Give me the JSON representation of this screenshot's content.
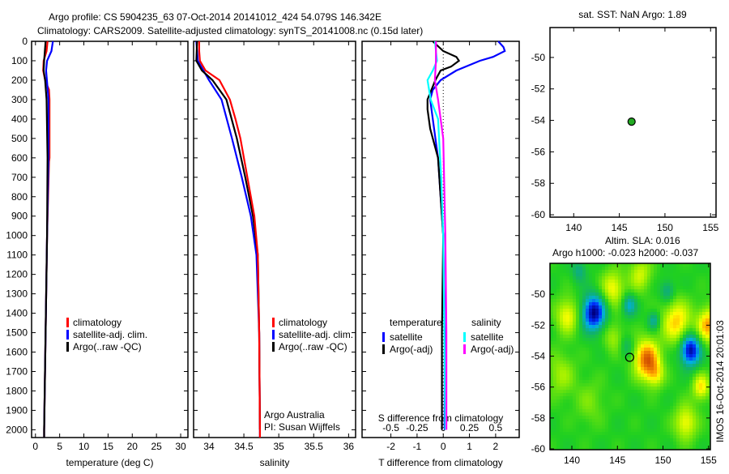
{
  "title_line1": "Argo profile: CS 5904235_63 07-Oct-2014 20141012_424 54.079S 146.342E",
  "title_line2": "Climatology: CARS2009. Satellite-adjusted climatology: synTS_20141008.nc (0.15d later)",
  "colors": {
    "climatology": "#ff0000",
    "satellite": "#0000ff",
    "argo": "#000000",
    "sal_satellite": "#00ffff",
    "sal_argo": "#ff00ff",
    "marker": "#22aa22"
  },
  "chart_data": [
    {
      "type": "line",
      "name": "temperature-profile",
      "xlabel": "temperature (deg C)",
      "ylabel": "depth",
      "xlim": [
        -0.8,
        31.5
      ],
      "ylim": [
        2040,
        0
      ],
      "xticks": [
        0,
        5,
        10,
        15,
        20,
        25,
        30
      ],
      "yticks": [
        0,
        100,
        200,
        300,
        400,
        500,
        600,
        700,
        800,
        900,
        1000,
        1100,
        1200,
        1300,
        1400,
        1500,
        1600,
        1700,
        1800,
        1900,
        2000
      ],
      "legend": [
        "climatology",
        "satellite-adj. clim.",
        "Argo(..raw -QC)"
      ],
      "series": [
        {
          "name": "climatology",
          "color": "#ff0000",
          "depth": [
            0,
            50,
            100,
            150,
            200,
            250,
            300,
            400,
            500,
            600,
            620,
            1000,
            1500,
            2000,
            2040
          ],
          "values": [
            2.5,
            2.3,
            1.7,
            1.6,
            2.0,
            2.8,
            2.9,
            2.9,
            2.9,
            2.9,
            2.8,
            2.4,
            2.1,
            1.8,
            1.8
          ]
        },
        {
          "name": "satellite-adj. clim.",
          "color": "#0000ff",
          "depth": [
            0,
            50,
            100,
            150,
            300,
            600,
            1000,
            1500,
            2000,
            2040
          ],
          "values": [
            3.6,
            3.3,
            2.4,
            2.2,
            2.7,
            2.7,
            2.4,
            2.1,
            1.8,
            1.8
          ]
        },
        {
          "name": "Argo(..raw -QC)",
          "color": "#000000",
          "depth": [
            0,
            100,
            150,
            200,
            300,
            600,
            1000,
            1500,
            2000,
            2040
          ],
          "values": [
            2.1,
            1.8,
            1.7,
            2.0,
            2.3,
            2.5,
            2.4,
            2.1,
            1.8,
            1.8
          ]
        }
      ]
    },
    {
      "type": "line",
      "name": "salinity-profile",
      "xlabel": "salinity",
      "xlim": [
        33.78,
        36.1
      ],
      "ylim": [
        2040,
        0
      ],
      "xticks": [
        34,
        34.5,
        35,
        35.5,
        36
      ],
      "legend": [
        "climatology",
        "satellite-adj. clim.",
        "Argo(..raw -QC)"
      ],
      "annotation": [
        "Argo Australia",
        "PI: Susan Wijffels"
      ],
      "series": [
        {
          "name": "satellite-adj. clim.",
          "color": "#0000ff",
          "depth": [
            0,
            100,
            200,
            300,
            500,
            700,
            900,
            1100,
            1500,
            2000,
            2040
          ],
          "values": [
            33.82,
            33.84,
            34.0,
            34.18,
            34.33,
            34.47,
            34.6,
            34.68,
            34.72,
            34.73,
            34.73
          ]
        },
        {
          "name": "Argo(..raw -QC)",
          "color": "#000000",
          "depth": [
            0,
            100,
            150,
            200,
            300,
            500,
            700,
            900,
            1100,
            1500,
            2000
          ],
          "values": [
            33.83,
            33.82,
            33.9,
            34.05,
            34.25,
            34.4,
            34.52,
            34.63,
            34.7,
            34.72,
            34.73
          ]
        },
        {
          "name": "climatology",
          "color": "#ff0000",
          "depth": [
            0,
            50,
            100,
            150,
            200,
            300,
            400,
            500,
            700,
            900,
            1100,
            1500,
            2000,
            2040
          ],
          "values": [
            33.86,
            33.86,
            33.87,
            33.95,
            34.15,
            34.3,
            34.38,
            34.45,
            34.55,
            34.65,
            34.7,
            34.72,
            34.73,
            34.73
          ]
        }
      ]
    },
    {
      "type": "line",
      "name": "difference-profile",
      "xlabel": "T difference from climatology",
      "x2label": "S difference from climatology",
      "xlim": [
        -3.1,
        2.9
      ],
      "ylim": [
        2040,
        0
      ],
      "xticks": [
        -2,
        -1,
        0,
        1,
        2
      ],
      "x2ticks": [
        "-0.5",
        "-0.25",
        "0",
        "0.25",
        "0.5"
      ],
      "legend_headers": [
        "temperature",
        "salinity"
      ],
      "legend": [
        "satellite",
        "Argo(-adj)",
        "satellite",
        "Argo(-adj)"
      ],
      "series": [
        {
          "name": "T satellite",
          "color": "#0000ff",
          "depth": [
            0,
            30,
            50,
            80,
            100,
            150,
            200,
            250,
            300,
            400,
            600,
            1000,
            1500,
            2000
          ],
          "values": [
            2.1,
            2.3,
            2.35,
            1.9,
            1.4,
            0.5,
            -0.1,
            -0.4,
            -0.5,
            -0.4,
            -0.2,
            0.0,
            0.05,
            0.05
          ]
        },
        {
          "name": "T Argo(-adj)",
          "color": "#000000",
          "depth": [
            0,
            50,
            80,
            100,
            130,
            150,
            200,
            300,
            350,
            450,
            600,
            1000,
            1500,
            2000
          ],
          "values": [
            -0.4,
            0.0,
            0.5,
            0.6,
            0.3,
            -0.1,
            -0.3,
            -0.6,
            -0.6,
            -0.5,
            -0.2,
            0.0,
            -0.05,
            -0.05
          ]
        },
        {
          "name": "S satellite",
          "color": "#00ffff",
          "scale": 4,
          "depth": [
            0,
            100,
            150,
            200,
            300,
            400,
            700,
            1000,
            2000
          ],
          "values": [
            -0.08,
            -0.06,
            -0.1,
            -0.15,
            -0.12,
            -0.05,
            -0.02,
            0.0,
            0.02
          ]
        },
        {
          "name": "S Argo(-adj)",
          "color": "#ff00ff",
          "scale": 4,
          "depth": [
            0,
            100,
            200,
            300,
            500,
            1000,
            1500,
            2000
          ],
          "values": [
            -0.07,
            -0.07,
            -0.08,
            -0.05,
            0.0,
            0.02,
            0.03,
            0.03
          ]
        }
      ]
    },
    {
      "type": "scatter",
      "name": "sst-map",
      "title": "sat. SST: NaN Argo: 1.89",
      "xlim": [
        137.4,
        155.6
      ],
      "ylim": [
        -60.15,
        -48.1
      ],
      "xticks": [
        140,
        145,
        150,
        155
      ],
      "yticks": [
        -50,
        -52,
        -54,
        -56,
        -58,
        -60
      ],
      "points": [
        {
          "lon": 146.342,
          "lat": -54.079
        }
      ]
    },
    {
      "type": "heatmap",
      "name": "sla-map",
      "title_line1": "Altim. SLA: 0.016",
      "title_line2": "Argo h1000: -0.023 h2000: -0.037",
      "side_label": "IMOS 16-Oct-2014 20:01:03",
      "xlim": [
        137.6,
        155.2
      ],
      "ylim": [
        -60.05,
        -48.0
      ],
      "xticks": [
        140,
        145,
        150,
        155
      ],
      "yticks": [
        -50,
        -52,
        -54,
        -56,
        -58,
        -60
      ],
      "points": [
        {
          "lon": 146.342,
          "lat": -54.079
        }
      ],
      "features": [
        [
          142.4,
          -51.2,
          -1.0,
          0.8
        ],
        [
          146.3,
          -50.7,
          -0.45,
          0.5
        ],
        [
          149.0,
          -51.7,
          -0.4,
          0.4
        ],
        [
          153.0,
          -53.6,
          -1.0,
          0.7
        ],
        [
          148.2,
          -54.2,
          0.85,
          0.9
        ],
        [
          151.5,
          -51.8,
          0.6,
          1.0
        ],
        [
          155.0,
          -52.0,
          0.7,
          0.8
        ],
        [
          139.5,
          -51.4,
          0.5,
          0.8
        ],
        [
          144.5,
          -49.6,
          0.5,
          0.8
        ],
        [
          147.5,
          -48.7,
          0.4,
          0.8
        ],
        [
          154.2,
          -56.0,
          0.55,
          0.6
        ],
        [
          152.5,
          -58.3,
          0.5,
          0.8
        ],
        [
          138.8,
          -55.2,
          0.3,
          1.0
        ],
        [
          144.6,
          -52.8,
          0.3,
          0.7
        ],
        [
          142.0,
          -57.0,
          0.2,
          1.0
        ],
        [
          150.5,
          -49.8,
          -0.35,
          0.5
        ],
        [
          140.8,
          -48.5,
          -0.3,
          0.5
        ],
        [
          146.0,
          -53.4,
          -0.25,
          0.5
        ],
        [
          149.2,
          -55.2,
          0.4,
          0.6
        ]
      ]
    }
  ]
}
